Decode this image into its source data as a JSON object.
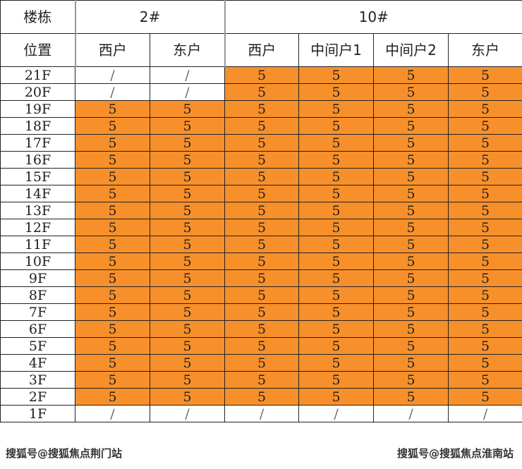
{
  "header": {
    "building_label": "楼栋",
    "position_label": "位置",
    "buildings": [
      {
        "name": "2#",
        "units": [
          "西户",
          "东户"
        ]
      },
      {
        "name": "10#",
        "units": [
          "西户",
          "中间户1",
          "中间户2",
          "东户"
        ]
      }
    ]
  },
  "rows": [
    {
      "floor": "21F",
      "values": [
        "/",
        "/",
        "5",
        "5",
        "5",
        "5"
      ]
    },
    {
      "floor": "20F",
      "values": [
        "/",
        "/",
        "5",
        "5",
        "5",
        "5"
      ]
    },
    {
      "floor": "19F",
      "values": [
        "5",
        "5",
        "5",
        "5",
        "5",
        "5"
      ]
    },
    {
      "floor": "18F",
      "values": [
        "5",
        "5",
        "5",
        "5",
        "5",
        "5"
      ]
    },
    {
      "floor": "17F",
      "values": [
        "5",
        "5",
        "5",
        "5",
        "5",
        "5"
      ]
    },
    {
      "floor": "16F",
      "values": [
        "5",
        "5",
        "5",
        "5",
        "5",
        "5"
      ]
    },
    {
      "floor": "15F",
      "values": [
        "5",
        "5",
        "5",
        "5",
        "5",
        "5"
      ]
    },
    {
      "floor": "14F",
      "values": [
        "5",
        "5",
        "5",
        "5",
        "5",
        "5"
      ]
    },
    {
      "floor": "13F",
      "values": [
        "5",
        "5",
        "5",
        "5",
        "5",
        "5"
      ]
    },
    {
      "floor": "12F",
      "values": [
        "5",
        "5",
        "5",
        "5",
        "5",
        "5"
      ]
    },
    {
      "floor": "11F",
      "values": [
        "5",
        "5",
        "5",
        "5",
        "5",
        "5"
      ]
    },
    {
      "floor": "10F",
      "values": [
        "5",
        "5",
        "5",
        "5",
        "5",
        "5"
      ]
    },
    {
      "floor": "9F",
      "values": [
        "5",
        "5",
        "5",
        "5",
        "5",
        "5"
      ]
    },
    {
      "floor": "8F",
      "values": [
        "5",
        "5",
        "5",
        "5",
        "5",
        "5"
      ]
    },
    {
      "floor": "7F",
      "values": [
        "5",
        "5",
        "5",
        "5",
        "5",
        "5"
      ]
    },
    {
      "floor": "6F",
      "values": [
        "5",
        "5",
        "5",
        "5",
        "5",
        "5"
      ]
    },
    {
      "floor": "5F",
      "values": [
        "5",
        "5",
        "5",
        "5",
        "5",
        "5"
      ]
    },
    {
      "floor": "4F",
      "values": [
        "5",
        "5",
        "5",
        "5",
        "5",
        "5"
      ]
    },
    {
      "floor": "3F",
      "values": [
        "5",
        "5",
        "5",
        "5",
        "5",
        "5"
      ]
    },
    {
      "floor": "2F",
      "values": [
        "5",
        "5",
        "5",
        "5",
        "5",
        "5"
      ]
    },
    {
      "floor": "1F",
      "values": [
        "/",
        "/",
        "/",
        "/",
        "/",
        "/"
      ]
    }
  ],
  "highlight_color": "#F7902A",
  "watermarks": [
    "搜狐号@搜狐焦点荆门站",
    "搜狐号@搜狐焦点淮南站"
  ]
}
